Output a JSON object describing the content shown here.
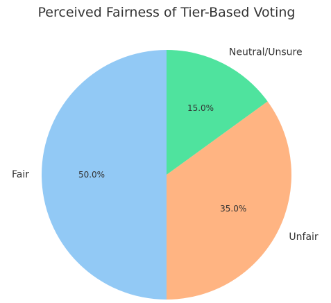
{
  "chart_data": {
    "type": "pie",
    "title": "Perceived Fairness of Tier-Based Voting",
    "categories": [
      "Fair",
      "Unfair",
      "Neutral/Unsure"
    ],
    "values": [
      50.0,
      35.0,
      15.0
    ],
    "percent_labels": [
      "50.0%",
      "35.0%",
      "15.0%"
    ],
    "colors": [
      "#92c9f5",
      "#ffb482",
      "#4fe39e"
    ],
    "start_angle_deg": 90,
    "direction": "counterclockwise",
    "legend": "none"
  }
}
